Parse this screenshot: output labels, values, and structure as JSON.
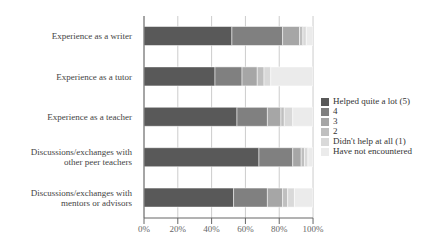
{
  "chart_data": {
    "type": "bar",
    "orientation": "horizontal",
    "stacked": true,
    "categories": [
      "Discussions/exchanges with\nmentors or advisors",
      "Discussions/exchanges with\nother peer teachers",
      "Experience as a teacher",
      "Experience as a tutor",
      "Experience as a writer"
    ],
    "series": [
      {
        "name": "Helped quite a lot (5)",
        "color": "#595959",
        "values": [
          53,
          68,
          55,
          42,
          52
        ]
      },
      {
        "name": "4",
        "color": "#808080",
        "values": [
          20,
          20,
          18,
          16,
          30
        ]
      },
      {
        "name": "3",
        "color": "#a6a6a6",
        "values": [
          9,
          5,
          8,
          9,
          10
        ]
      },
      {
        "name": "2",
        "color": "#bfbfbf",
        "values": [
          3,
          2,
          2,
          4,
          2
        ]
      },
      {
        "name": "Didn't help at all (1)",
        "color": "#d9d9d9",
        "values": [
          4,
          2,
          5,
          4,
          2
        ]
      },
      {
        "name": "Have not encountered",
        "color": "#ebebeb",
        "values": [
          11,
          3,
          12,
          25,
          4
        ]
      }
    ],
    "xlim": [
      0,
      100
    ],
    "xticks": [
      {
        "value": 0,
        "label": "0%"
      },
      {
        "value": 20,
        "label": "20%"
      },
      {
        "value": 40,
        "label": "40%"
      },
      {
        "value": 60,
        "label": "60%"
      },
      {
        "value": 80,
        "label": "80%"
      },
      {
        "value": 100,
        "label": "100%"
      }
    ],
    "grid": true,
    "legend": "right"
  }
}
